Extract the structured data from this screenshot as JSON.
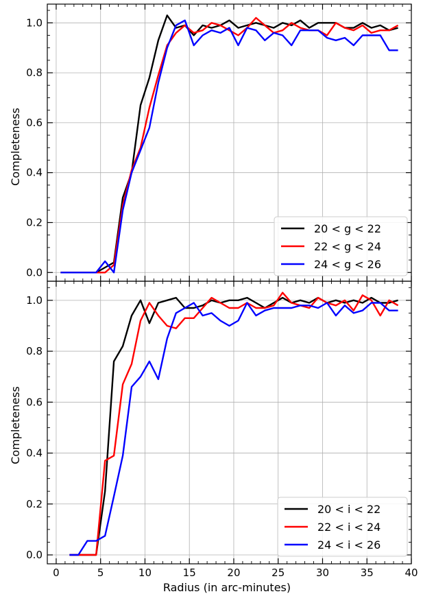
{
  "figure": {
    "xlabel": "Radius (in arc-minutes)"
  },
  "chart_data": [
    {
      "type": "line",
      "ylabel": "Completeness",
      "xlim": [
        -1,
        40
      ],
      "ylim": [
        -0.035,
        1.075
      ],
      "xticks": [
        0,
        5,
        10,
        15,
        20,
        25,
        30,
        35,
        40
      ],
      "yticks": [
        0.0,
        0.2,
        0.4,
        0.6,
        0.8,
        1.0
      ],
      "ytick_labels": [
        "0.0",
        "0.2",
        "0.4",
        "0.6",
        "0.8",
        "1.0"
      ],
      "grid": true,
      "legend_position": "lower-right",
      "series": [
        {
          "name": "20 < g < 22",
          "color": "#000000",
          "x": [
            0.5,
            1.5,
            2.5,
            3.5,
            4.5,
            5.5,
            6.5,
            7.5,
            8.5,
            9.5,
            10.5,
            11.5,
            12.5,
            13.5,
            14.5,
            15.5,
            16.5,
            17.5,
            18.5,
            19.5,
            20.5,
            21.5,
            22.5,
            23.5,
            24.5,
            25.5,
            26.5,
            27.5,
            28.5,
            29.5,
            30.5,
            31.5,
            32.5,
            33.5,
            34.5,
            35.5,
            36.5,
            37.5,
            38.5
          ],
          "y": [
            0,
            0,
            0,
            0,
            0,
            0.02,
            0.04,
            0.3,
            0.4,
            0.67,
            0.78,
            0.93,
            1.03,
            0.98,
            0.99,
            0.95,
            0.99,
            0.98,
            0.99,
            1.01,
            0.98,
            0.99,
            1.0,
            0.99,
            0.98,
            1.0,
            0.99,
            1.01,
            0.98,
            1.0,
            1.0,
            1.0,
            0.98,
            0.98,
            1.0,
            0.98,
            0.99,
            0.97,
            0.98
          ]
        },
        {
          "name": "22 < g < 24",
          "color": "#ff0000",
          "x": [
            0.5,
            1.5,
            2.5,
            3.5,
            4.5,
            5.5,
            6.5,
            7.5,
            8.5,
            9.5,
            10.5,
            11.5,
            12.5,
            13.5,
            14.5,
            15.5,
            16.5,
            17.5,
            18.5,
            19.5,
            20.5,
            21.5,
            22.5,
            23.5,
            24.5,
            25.5,
            26.5,
            27.5,
            28.5,
            29.5,
            30.5,
            31.5,
            32.5,
            33.5,
            34.5,
            35.5,
            36.5,
            37.5,
            38.5
          ],
          "y": [
            0,
            0,
            0,
            0,
            0,
            0,
            0.03,
            0.27,
            0.41,
            0.5,
            0.66,
            0.79,
            0.91,
            0.96,
            0.99,
            0.96,
            0.97,
            1.0,
            0.99,
            0.97,
            0.95,
            0.98,
            1.02,
            0.99,
            0.96,
            0.97,
            1.0,
            0.98,
            0.97,
            0.97,
            0.95,
            1.0,
            0.98,
            0.97,
            0.99,
            0.96,
            0.97,
            0.97,
            0.99
          ]
        },
        {
          "name": "24 < g < 26",
          "color": "#0000ff",
          "x": [
            0.5,
            1.5,
            2.5,
            3.5,
            4.5,
            5.5,
            6.5,
            7.5,
            8.5,
            9.5,
            10.5,
            11.5,
            12.5,
            13.5,
            14.5,
            15.5,
            16.5,
            17.5,
            18.5,
            19.5,
            20.5,
            21.5,
            22.5,
            23.5,
            24.5,
            25.5,
            26.5,
            27.5,
            28.5,
            29.5,
            30.5,
            31.5,
            32.5,
            33.5,
            34.5,
            35.5,
            36.5,
            37.5,
            38.5
          ],
          "y": [
            0,
            0,
            0,
            0,
            0,
            0.045,
            0,
            0.25,
            0.4,
            0.49,
            0.58,
            0.76,
            0.9,
            0.99,
            1.01,
            0.91,
            0.95,
            0.97,
            0.96,
            0.98,
            0.91,
            0.98,
            0.97,
            0.93,
            0.96,
            0.95,
            0.91,
            0.97,
            0.97,
            0.97,
            0.94,
            0.93,
            0.94,
            0.91,
            0.95,
            0.95,
            0.95,
            0.89,
            0.89
          ]
        }
      ]
    },
    {
      "type": "line",
      "ylabel": "Completeness",
      "xlim": [
        -1,
        40
      ],
      "ylim": [
        -0.035,
        1.075
      ],
      "xticks": [
        0,
        5,
        10,
        15,
        20,
        25,
        30,
        35,
        40
      ],
      "xtick_labels": [
        "0",
        "5",
        "10",
        "15",
        "20",
        "25",
        "30",
        "35",
        "40"
      ],
      "yticks": [
        0.0,
        0.2,
        0.4,
        0.6,
        0.8,
        1.0
      ],
      "ytick_labels": [
        "0.0",
        "0.2",
        "0.4",
        "0.6",
        "0.8",
        "1.0"
      ],
      "grid": true,
      "legend_position": "lower-right",
      "series": [
        {
          "name": "20 < i < 22",
          "color": "#000000",
          "x": [
            1.5,
            2.5,
            3.5,
            4.5,
            5.5,
            6.5,
            7.5,
            8.5,
            9.5,
            10.5,
            11.5,
            12.5,
            13.5,
            14.5,
            15.5,
            16.5,
            17.5,
            18.5,
            19.5,
            20.5,
            21.5,
            22.5,
            23.5,
            24.5,
            25.5,
            26.5,
            27.5,
            28.5,
            29.5,
            30.5,
            31.5,
            32.5,
            33.5,
            34.5,
            35.5,
            36.5,
            37.5,
            38.5
          ],
          "y": [
            0,
            0,
            0,
            0,
            0.25,
            0.76,
            0.82,
            0.94,
            1.0,
            0.91,
            0.99,
            1.0,
            1.01,
            0.97,
            0.97,
            0.98,
            1.0,
            0.99,
            1.0,
            1.0,
            1.01,
            0.99,
            0.97,
            0.99,
            1.01,
            0.99,
            1.0,
            0.99,
            1.01,
            0.99,
            1.0,
            0.99,
            1.0,
            0.99,
            1.01,
            0.99,
            0.99,
            1.0
          ]
        },
        {
          "name": "22 < i < 24",
          "color": "#ff0000",
          "x": [
            1.5,
            2.5,
            3.5,
            4.5,
            5.5,
            6.5,
            7.5,
            8.5,
            9.5,
            10.5,
            11.5,
            12.5,
            13.5,
            14.5,
            15.5,
            16.5,
            17.5,
            18.5,
            19.5,
            20.5,
            21.5,
            22.5,
            23.5,
            24.5,
            25.5,
            26.5,
            27.5,
            28.5,
            29.5,
            30.5,
            31.5,
            32.5,
            33.5,
            34.5,
            35.5,
            36.5,
            37.5,
            38.5
          ],
          "y": [
            0,
            0,
            0,
            0,
            0.37,
            0.39,
            0.67,
            0.75,
            0.92,
            0.99,
            0.94,
            0.9,
            0.89,
            0.93,
            0.93,
            0.97,
            1.01,
            0.99,
            0.97,
            0.97,
            0.99,
            0.97,
            0.97,
            0.98,
            1.03,
            0.99,
            0.98,
            0.97,
            1.01,
            0.99,
            0.98,
            1.0,
            0.96,
            1.02,
            1.0,
            0.94,
            1.0,
            0.98
          ]
        },
        {
          "name": "24 < i < 26",
          "color": "#0000ff",
          "x": [
            1.5,
            2.5,
            3.5,
            4.5,
            5.5,
            6.5,
            7.5,
            8.5,
            9.5,
            10.5,
            11.5,
            12.5,
            13.5,
            14.5,
            15.5,
            16.5,
            17.5,
            18.5,
            19.5,
            20.5,
            21.5,
            22.5,
            23.5,
            24.5,
            25.5,
            26.5,
            27.5,
            28.5,
            29.5,
            30.5,
            31.5,
            32.5,
            33.5,
            34.5,
            35.5,
            36.5,
            37.5,
            38.5
          ],
          "y": [
            0,
            0,
            0.055,
            0.055,
            0.075,
            0.23,
            0.39,
            0.66,
            0.7,
            0.76,
            0.69,
            0.85,
            0.95,
            0.97,
            0.99,
            0.94,
            0.95,
            0.92,
            0.9,
            0.92,
            0.99,
            0.94,
            0.96,
            0.97,
            0.97,
            0.97,
            0.98,
            0.98,
            0.97,
            0.99,
            0.94,
            0.98,
            0.95,
            0.96,
            0.99,
            0.99,
            0.96,
            0.96
          ]
        }
      ]
    }
  ]
}
